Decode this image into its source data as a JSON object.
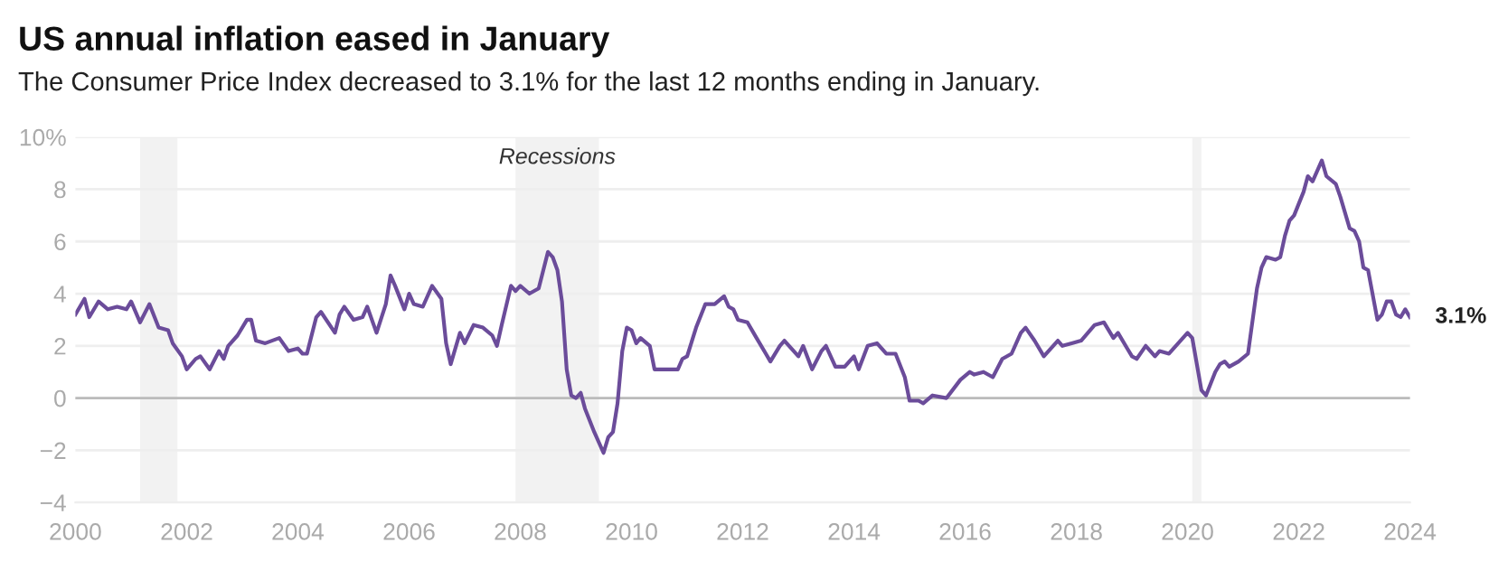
{
  "chart_data": {
    "type": "line",
    "title": "US annual inflation eased in January",
    "subtitle": "The Consumer Price Index decreased to 3.1% for the last 12 months ending in January.",
    "x": [
      "2000-01",
      "2000-03",
      "2000-04",
      "2000-06",
      "2000-08",
      "2000-10",
      "2000-12",
      "2001-01",
      "2001-03",
      "2001-05",
      "2001-07",
      "2001-09",
      "2001-10",
      "2001-12",
      "2002-01",
      "2002-03",
      "2002-04",
      "2002-06",
      "2002-08",
      "2002-09",
      "2002-10",
      "2002-12",
      "2003-02",
      "2003-03",
      "2003-04",
      "2003-06",
      "2003-09",
      "2003-11",
      "2004-01",
      "2004-02",
      "2004-03",
      "2004-05",
      "2004-06",
      "2004-09",
      "2004-10",
      "2004-11",
      "2005-01",
      "2005-03",
      "2005-04",
      "2005-06",
      "2005-08",
      "2005-09",
      "2005-10",
      "2005-12",
      "2006-01",
      "2006-02",
      "2006-04",
      "2006-06",
      "2006-08",
      "2006-09",
      "2006-10",
      "2006-12",
      "2007-01",
      "2007-03",
      "2007-05",
      "2007-07",
      "2007-08",
      "2007-09",
      "2007-11",
      "2007-12",
      "2008-01",
      "2008-03",
      "2008-05",
      "2008-07",
      "2008-08",
      "2008-09",
      "2008-10",
      "2008-11",
      "2008-12",
      "2009-01",
      "2009-02",
      "2009-03",
      "2009-05",
      "2009-07",
      "2009-08",
      "2009-09",
      "2009-10",
      "2009-11",
      "2009-12",
      "2010-01",
      "2010-02",
      "2010-03",
      "2010-05",
      "2010-06",
      "2010-09",
      "2010-11",
      "2010-12",
      "2011-01",
      "2011-03",
      "2011-05",
      "2011-07",
      "2011-09",
      "2011-10",
      "2011-11",
      "2011-12",
      "2012-02",
      "2012-04",
      "2012-06",
      "2012-07",
      "2012-09",
      "2012-10",
      "2013-01",
      "2013-02",
      "2013-04",
      "2013-06",
      "2013-07",
      "2013-09",
      "2013-11",
      "2014-01",
      "2014-02",
      "2014-04",
      "2014-06",
      "2014-08",
      "2014-10",
      "2014-12",
      "2015-01",
      "2015-03",
      "2015-04",
      "2015-06",
      "2015-09",
      "2015-12",
      "2016-02",
      "2016-03",
      "2016-05",
      "2016-07",
      "2016-09",
      "2016-11",
      "2017-01",
      "2017-02",
      "2017-04",
      "2017-06",
      "2017-09",
      "2017-10",
      "2017-12",
      "2018-02",
      "2018-05",
      "2018-07",
      "2018-09",
      "2018-10",
      "2018-12",
      "2019-01",
      "2019-02",
      "2019-04",
      "2019-06",
      "2019-07",
      "2019-09",
      "2019-11",
      "2020-01",
      "2020-02",
      "2020-04",
      "2020-05",
      "2020-07",
      "2020-08",
      "2020-09",
      "2020-10",
      "2020-12",
      "2021-02",
      "2021-04",
      "2021-05",
      "2021-06",
      "2021-08",
      "2021-09",
      "2021-10",
      "2021-11",
      "2021-12",
      "2022-02",
      "2022-03",
      "2022-04",
      "2022-06",
      "2022-07",
      "2022-09",
      "2022-10",
      "2022-12",
      "2023-01",
      "2023-02",
      "2023-03",
      "2023-04",
      "2023-06",
      "2023-07",
      "2023-08",
      "2023-09",
      "2023-10",
      "2023-11",
      "2023-12",
      "2024-01"
    ],
    "series": [
      {
        "color": "#6b4c9a",
        "values": [
          3.2,
          3.8,
          3.1,
          3.7,
          3.4,
          3.5,
          3.4,
          3.7,
          2.9,
          3.6,
          2.7,
          2.6,
          2.1,
          1.6,
          1.1,
          1.5,
          1.6,
          1.1,
          1.8,
          1.5,
          2.0,
          2.4,
          3.0,
          3.0,
          2.2,
          2.1,
          2.3,
          1.8,
          1.9,
          1.7,
          1.7,
          3.1,
          3.3,
          2.5,
          3.2,
          3.5,
          3.0,
          3.1,
          3.5,
          2.5,
          3.6,
          4.7,
          4.3,
          3.4,
          4.0,
          3.6,
          3.5,
          4.3,
          3.8,
          2.1,
          1.3,
          2.5,
          2.1,
          2.8,
          2.7,
          2.4,
          2.0,
          2.8,
          4.3,
          4.1,
          4.3,
          4.0,
          4.2,
          5.6,
          5.4,
          4.9,
          3.7,
          1.1,
          0.1,
          0.0,
          0.2,
          -0.4,
          -1.3,
          -2.1,
          -1.5,
          -1.3,
          -0.2,
          1.8,
          2.7,
          2.6,
          2.1,
          2.3,
          2.0,
          1.1,
          1.1,
          1.1,
          1.5,
          1.6,
          2.7,
          3.6,
          3.6,
          3.9,
          3.5,
          3.4,
          3.0,
          2.9,
          2.3,
          1.7,
          1.4,
          2.0,
          2.2,
          1.6,
          2.0,
          1.1,
          1.8,
          2.0,
          1.2,
          1.2,
          1.6,
          1.1,
          2.0,
          2.1,
          1.7,
          1.7,
          0.8,
          -0.1,
          -0.1,
          -0.2,
          0.1,
          0.0,
          0.7,
          1.0,
          0.9,
          1.0,
          0.8,
          1.5,
          1.7,
          2.5,
          2.7,
          2.2,
          1.6,
          2.2,
          2.0,
          2.1,
          2.2,
          2.8,
          2.9,
          2.3,
          2.5,
          1.9,
          1.6,
          1.5,
          2.0,
          1.6,
          1.8,
          1.7,
          2.1,
          2.5,
          2.3,
          0.3,
          0.1,
          1.0,
          1.3,
          1.4,
          1.2,
          1.4,
          1.7,
          4.2,
          5.0,
          5.4,
          5.3,
          5.4,
          6.2,
          6.8,
          7.0,
          7.9,
          8.5,
          8.3,
          9.1,
          8.5,
          8.2,
          7.7,
          6.5,
          6.4,
          6.0,
          5.0,
          4.9,
          3.0,
          3.2,
          3.7,
          3.7,
          3.2,
          3.1,
          3.4,
          3.1
        ]
      }
    ],
    "xlim": [
      "2000-01",
      "2024-01"
    ],
    "xticks": [
      {
        "value": "2000",
        "label": "2000"
      },
      {
        "value": "2002",
        "label": "2002"
      },
      {
        "value": "2004",
        "label": "2004"
      },
      {
        "value": "2006",
        "label": "2006"
      },
      {
        "value": "2008",
        "label": "2008"
      },
      {
        "value": "2010",
        "label": "2010"
      },
      {
        "value": "2012",
        "label": "2012"
      },
      {
        "value": "2014",
        "label": "2014"
      },
      {
        "value": "2016",
        "label": "2016"
      },
      {
        "value": "2018",
        "label": "2018"
      },
      {
        "value": "2020",
        "label": "2020"
      },
      {
        "value": "2022",
        "label": "2022"
      },
      {
        "value": "2024",
        "label": "2024"
      }
    ],
    "ylim": [
      -4,
      10
    ],
    "yticks": [
      -4,
      -2,
      0,
      2,
      4,
      6,
      8,
      {
        "value": 10,
        "label": "10%"
      }
    ],
    "grid": "y",
    "ref_lines": [
      {
        "axis": "y",
        "value": 0,
        "color": "#bbbbbb"
      }
    ],
    "bands": [
      {
        "axis": "x",
        "from": "2001-03",
        "to": "2001-11",
        "color": "#f2f2f2"
      },
      {
        "axis": "x",
        "from": "2007-12",
        "to": "2009-06",
        "label": "Recessions",
        "color": "#f2f2f2"
      },
      {
        "axis": "x",
        "from": "2020-02",
        "to": "2020-04",
        "color": "#f2f2f2"
      }
    ],
    "annotations": [
      {
        "text": "3.1%",
        "x": "2024-01",
        "y": 3.1
      }
    ]
  }
}
